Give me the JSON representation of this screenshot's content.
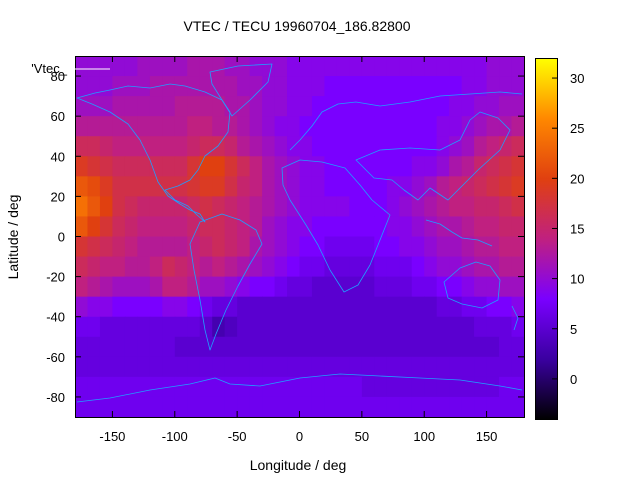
{
  "chart_data": {
    "type": "heatmap",
    "title": "VTEC / TECU 19960704_186.82800",
    "xlabel": "Longitude / deg",
    "ylabel": "Latitude / deg",
    "xlim": [
      -180,
      180
    ],
    "ylim": [
      -90,
      90
    ],
    "x_ticks": [
      -150,
      -100,
      -50,
      0,
      50,
      100,
      150
    ],
    "y_ticks": [
      80,
      60,
      40,
      20,
      0,
      -20,
      -40,
      -60,
      -80
    ],
    "legend_label": "'Vtec_",
    "colorbar": {
      "min": -4,
      "max": 32,
      "ticks": [
        0,
        5,
        10,
        15,
        20,
        25,
        30
      ],
      "palette": [
        "#000000",
        "#3a00a0",
        "#7a00ff",
        "#c02080",
        "#e04010",
        "#ff8800",
        "#ffff00"
      ]
    },
    "tec_grid": {
      "lon": [
        -175,
        -165,
        -155,
        -145,
        -135,
        -125,
        -115,
        -105,
        -95,
        -85,
        -75,
        -65,
        -55,
        -45,
        -35,
        -25,
        -15,
        -5,
        5,
        15,
        25,
        35,
        45,
        55,
        65,
        75,
        85,
        95,
        105,
        115,
        125,
        135,
        145,
        155,
        165,
        175
      ],
      "lat": [
        85,
        75,
        65,
        55,
        45,
        35,
        25,
        15,
        5,
        -5,
        -15,
        -25,
        -35,
        -45,
        -55,
        -65,
        -75,
        -85
      ],
      "values": [
        [
          10,
          10,
          10,
          10,
          10,
          11,
          11,
          11,
          11,
          12,
          12,
          12,
          11,
          11,
          10,
          10,
          10,
          9,
          9,
          9,
          9,
          9,
          9,
          9,
          9,
          9,
          9,
          9,
          9,
          9,
          9,
          9,
          9,
          10,
          10,
          10
        ],
        [
          10,
          10,
          10,
          11,
          11,
          11,
          12,
          12,
          12,
          12,
          12,
          12,
          12,
          11,
          11,
          10,
          10,
          9,
          9,
          9,
          8,
          8,
          8,
          8,
          8,
          8,
          8,
          8,
          8,
          8,
          8,
          9,
          9,
          10,
          10,
          10
        ],
        [
          11,
          11,
          11,
          12,
          12,
          12,
          12,
          12,
          13,
          13,
          13,
          13,
          12,
          12,
          11,
          10,
          10,
          9,
          9,
          8,
          8,
          8,
          8,
          8,
          8,
          8,
          8,
          8,
          8,
          8,
          9,
          9,
          10,
          10,
          11,
          11
        ],
        [
          13,
          13,
          13,
          13,
          13,
          13,
          13,
          13,
          13,
          14,
          14,
          13,
          13,
          12,
          11,
          10,
          9,
          9,
          8,
          8,
          8,
          8,
          8,
          8,
          8,
          8,
          8,
          8,
          8,
          9,
          9,
          10,
          11,
          12,
          12,
          13
        ],
        [
          16,
          16,
          15,
          14,
          14,
          14,
          14,
          14,
          14,
          15,
          16,
          16,
          15,
          13,
          12,
          11,
          10,
          9,
          9,
          8,
          8,
          8,
          8,
          8,
          8,
          8,
          8,
          8,
          8,
          9,
          10,
          11,
          13,
          14,
          15,
          16
        ],
        [
          19,
          18,
          17,
          16,
          16,
          16,
          16,
          16,
          16,
          18,
          20,
          20,
          18,
          16,
          14,
          12,
          11,
          10,
          9,
          9,
          8,
          8,
          8,
          8,
          8,
          8,
          8,
          9,
          9,
          10,
          12,
          13,
          15,
          16,
          17,
          18
        ],
        [
          22,
          21,
          19,
          17,
          17,
          17,
          17,
          17,
          17,
          18,
          19,
          19,
          17,
          15,
          14,
          12,
          11,
          10,
          9,
          9,
          8,
          8,
          8,
          8,
          8,
          9,
          9,
          10,
          11,
          13,
          14,
          15,
          16,
          17,
          18,
          19
        ],
        [
          24,
          22,
          20,
          17,
          16,
          15,
          15,
          15,
          15,
          16,
          17,
          16,
          15,
          14,
          13,
          12,
          11,
          10,
          9,
          9,
          9,
          9,
          8,
          8,
          8,
          9,
          10,
          11,
          12,
          13,
          14,
          14,
          15,
          15,
          16,
          17
        ],
        [
          22,
          20,
          18,
          16,
          15,
          14,
          14,
          14,
          14,
          15,
          16,
          16,
          15,
          14,
          13,
          11,
          10,
          9,
          9,
          8,
          8,
          8,
          8,
          8,
          8,
          9,
          9,
          10,
          11,
          12,
          12,
          13,
          14,
          14,
          15,
          15
        ],
        [
          18,
          17,
          16,
          15,
          14,
          13,
          13,
          13,
          13,
          14,
          15,
          16,
          15,
          14,
          12,
          11,
          10,
          9,
          8,
          8,
          7,
          7,
          7,
          7,
          8,
          8,
          9,
          9,
          10,
          11,
          11,
          12,
          13,
          13,
          14,
          14
        ],
        [
          16,
          15,
          14,
          14,
          13,
          13,
          14,
          16,
          15,
          14,
          13,
          14,
          13,
          12,
          11,
          10,
          9,
          8,
          7,
          7,
          6,
          6,
          6,
          6,
          7,
          7,
          7,
          8,
          9,
          10,
          10,
          11,
          12,
          12,
          13,
          13
        ],
        [
          14,
          13,
          12,
          11,
          11,
          11,
          12,
          14,
          14,
          13,
          11,
          11,
          10,
          9,
          8,
          8,
          7,
          6,
          6,
          5,
          5,
          5,
          5,
          5,
          6,
          6,
          6,
          7,
          7,
          8,
          8,
          9,
          10,
          10,
          11,
          11
        ],
        [
          10,
          9,
          9,
          8,
          8,
          8,
          8,
          9,
          9,
          8,
          7,
          6,
          6,
          5,
          5,
          5,
          5,
          5,
          5,
          5,
          5,
          5,
          5,
          5,
          5,
          5,
          5,
          5,
          5,
          6,
          6,
          7,
          7,
          8,
          8,
          9
        ],
        [
          7,
          7,
          6,
          6,
          6,
          6,
          6,
          6,
          6,
          6,
          5,
          3,
          4,
          5,
          5,
          5,
          5,
          5,
          5,
          5,
          5,
          5,
          5,
          5,
          5,
          5,
          5,
          5,
          5,
          5,
          5,
          5,
          6,
          6,
          6,
          7
        ],
        [
          6,
          6,
          6,
          6,
          6,
          6,
          6,
          6,
          5,
          5,
          5,
          5,
          5,
          5,
          5,
          5,
          5,
          5,
          5,
          5,
          5,
          5,
          5,
          5,
          5,
          5,
          5,
          5,
          5,
          5,
          5,
          5,
          5,
          5,
          6,
          6
        ],
        [
          6,
          6,
          6,
          6,
          6,
          6,
          6,
          6,
          6,
          6,
          6,
          6,
          6,
          6,
          6,
          6,
          6,
          6,
          6,
          6,
          6,
          6,
          6,
          6,
          6,
          6,
          6,
          6,
          6,
          6,
          6,
          6,
          6,
          6,
          6,
          6
        ],
        [
          7,
          7,
          7,
          7,
          7,
          7,
          7,
          7,
          7,
          7,
          7,
          7,
          7,
          7,
          7,
          7,
          7,
          7,
          7,
          7,
          7,
          7,
          7,
          6,
          6,
          6,
          6,
          6,
          6,
          6,
          6,
          6,
          6,
          6,
          7,
          7
        ],
        [
          7,
          7,
          7,
          7,
          7,
          7,
          7,
          7,
          7,
          7,
          7,
          7,
          7,
          7,
          7,
          7,
          7,
          7,
          7,
          7,
          7,
          7,
          7,
          7,
          7,
          7,
          7,
          7,
          7,
          7,
          7,
          7,
          7,
          7,
          7,
          7
        ]
      ]
    }
  }
}
